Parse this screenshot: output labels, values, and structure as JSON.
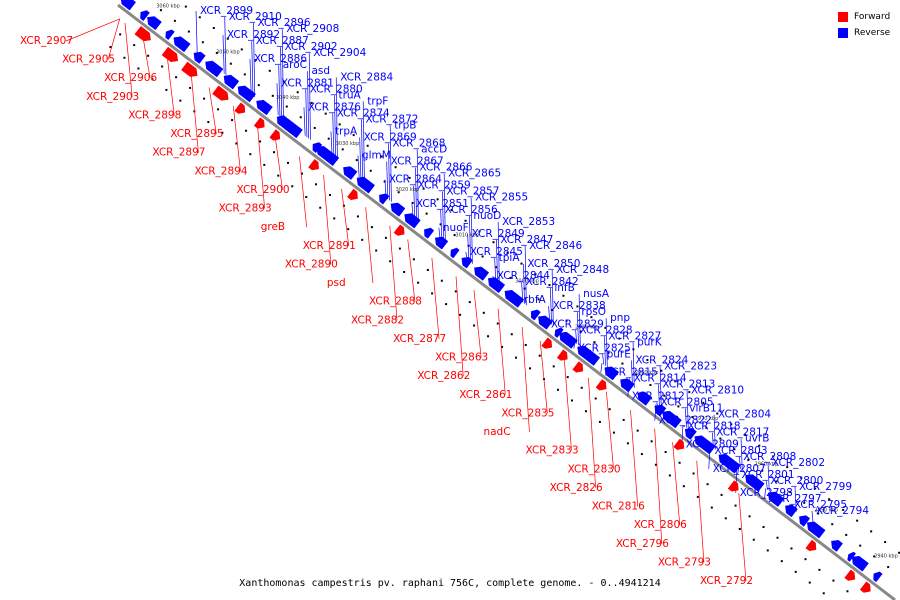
{
  "caption": "Xanthomonas campestris pv. raphani 756C, complete genome. - 0..4941214",
  "colors": {
    "forward": "#ff0000",
    "reverse": "#0000ff",
    "backbone": "#888888"
  },
  "legend": [
    {
      "label": "Forward",
      "strand": "forward"
    },
    {
      "label": "Reverse",
      "strand": "reverse"
    }
  ],
  "ticks": [
    "2940 kbp",
    "2950 kbp",
    "2960 kbp",
    "2970 kbp",
    "2980 kbp",
    "2990 kbp",
    "3000 kbp",
    "3010 kbp",
    "3020 kbp",
    "3030 kbp",
    "3040 kbp",
    "3050 kbp",
    "3060 kbp"
  ],
  "forward_labels": [
    "XCR_2907",
    "XCR_2905",
    "XCR_2906",
    "XCR_2903",
    "XCR_2898",
    "XCR_2895",
    "XCR_2897",
    "XCR_2894",
    "XCR_2900",
    "XCR_2893",
    "greB",
    "XCR_2891",
    "XCR_2890",
    "psd",
    "XCR_2888",
    "XCR_2882",
    "XCR_2877",
    "XCR_2863",
    "XCR_2862",
    "XCR_2861",
    "XCR_2835",
    "nadC",
    "XCR_2833",
    "XCR_2830",
    "XCR_2826",
    "XCR_2816",
    "XCR_2806",
    "XCR_2796",
    "XCR_2793",
    "XCR_2792"
  ],
  "reverse_labels": [
    "XCR_2899",
    "XCR_2910",
    "XCR_2896",
    "XCR_2908",
    "XCR_2892",
    "XCR_2887",
    "XCR_2902",
    "XCR_2904",
    "XCR_2886",
    "aroC",
    "asd",
    "XCR_2884",
    "XCR_2881",
    "XCR_2880",
    "truA",
    "trpF",
    "XCR_2876",
    "XCR_2874",
    "XCR_2872",
    "trpB",
    "trpA",
    "XCR_2869",
    "XCR_2868",
    "accD",
    "glmM",
    "XCR_2867",
    "XCR_2866",
    "XCR_2865",
    "XCR_2864",
    "XCR_2859",
    "XCR_2857",
    "XCR_2855",
    "XCR_2851",
    "XCR_2856",
    "nuoD",
    "XCR_2853",
    "nuoF",
    "XCR_2849",
    "XCR_2847",
    "XCR_2846",
    "XCR_2845",
    "tpiA",
    "XCR_2850",
    "XCR_2848",
    "XCR_2844",
    "XCR_2842",
    "infB",
    "nusA",
    "rbfA",
    "XCR_2838",
    "rpsO",
    "pnp",
    "XCR_2829",
    "XCR_2828",
    "XCR_2827",
    "purK",
    "XCR_2825",
    "purE",
    "XCR_2824",
    "XCR_2823",
    "XCR_2815",
    "XCR_2814",
    "XCR_2813",
    "XCR_2810",
    "XCR_2812",
    "XCR_2805",
    "virB11",
    "XCR_2804",
    "XCR_2822",
    "XCR_2818",
    "XCR_2817",
    "uvrB",
    "XCR_2809",
    "XCR_2803",
    "XCR_2808",
    "XCR_2802",
    "XCR_2807",
    "XCR_2801",
    "XCR_2800",
    "XCR_2799",
    "XCR_2798",
    "XCR_2797",
    "XCR_2795",
    "XCR_2794"
  ]
}
